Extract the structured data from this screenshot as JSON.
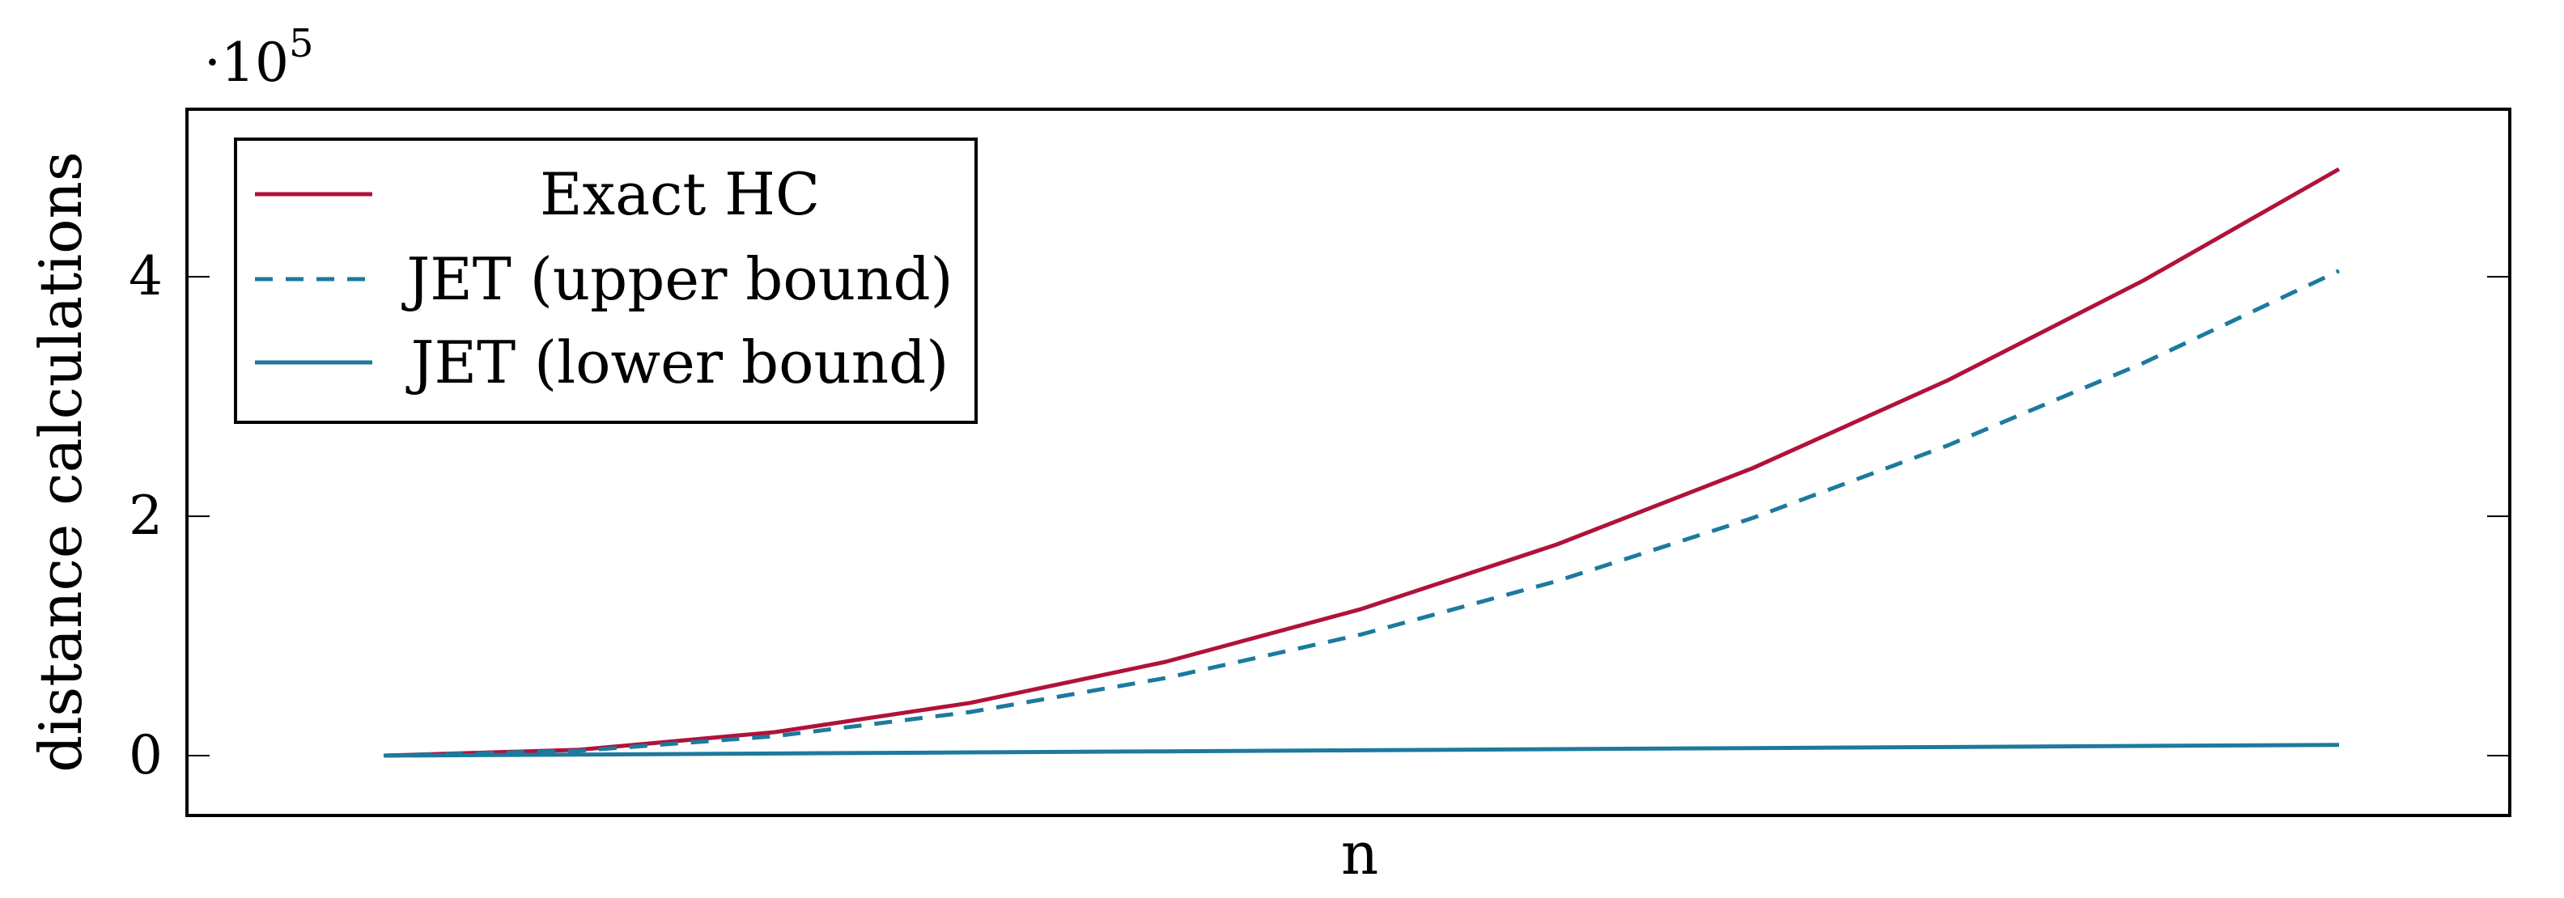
{
  "chart_data": {
    "type": "line",
    "title": "",
    "xlabel": "n",
    "ylabel": "distance calculations",
    "y_scale_label": "·10",
    "y_scale_exponent": "5",
    "xlim": [
      0,
      1000
    ],
    "ylim": [
      -50000,
      540000
    ],
    "y_ticks": [
      0,
      200000,
      400000
    ],
    "y_tick_labels": [
      "0",
      "2",
      "4"
    ],
    "x_tick_labels": [],
    "grid": false,
    "legend_position": "top-left",
    "x": [
      0,
      100,
      200,
      300,
      400,
      500,
      600,
      700,
      800,
      900,
      1000
    ],
    "series": [
      {
        "name": "Exact HC",
        "color": "#b0123a",
        "dash": "solid",
        "values": [
          0,
          4900,
          19600,
          44100,
          78400,
          122500,
          176400,
          240100,
          313600,
          396900,
          490000
        ]
      },
      {
        "name": "JET (upper bound)",
        "color": "#1c7a9e",
        "dash": "dashed",
        "values": [
          0,
          4050,
          16200,
          36450,
          64800,
          101250,
          145800,
          198450,
          259200,
          328050,
          405000
        ]
      },
      {
        "name": "JET (lower bound)",
        "color": "#1c7a9e",
        "dash": "solid",
        "values": [
          0,
          900,
          1800,
          2700,
          3600,
          4500,
          5400,
          6300,
          7200,
          8100,
          9000
        ]
      }
    ]
  }
}
